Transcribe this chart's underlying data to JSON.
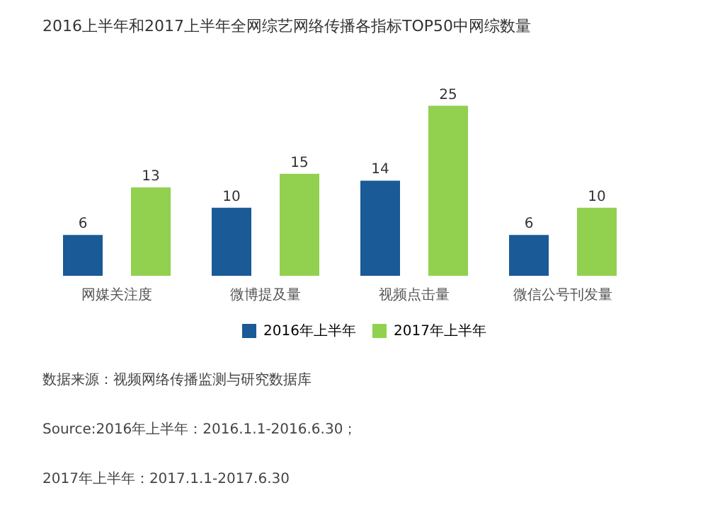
{
  "chart_data": {
    "type": "bar",
    "title": "2016上半年和2017上半年全网综艺网络传播各指标TOP50中网综数量",
    "categories": [
      "网媒关注度",
      "微博提及量",
      "视频点击量",
      "微信公号刊发量"
    ],
    "series": [
      {
        "name": "2016年上半年",
        "color": "#1a5a96",
        "values": [
          6,
          10,
          14,
          6
        ]
      },
      {
        "name": "2017年上半年",
        "color": "#92d050",
        "values": [
          13,
          15,
          25,
          10
        ]
      }
    ],
    "data_labels": true,
    "legend": "bottom",
    "grid": false,
    "annotations": [
      "数据来源：视频网络传播监测与研究数据库",
      "Source:2016年上半年：2016.1.1-2016.6.30；",
      "2017年上半年：2017.1.1-2017.6.30"
    ]
  }
}
